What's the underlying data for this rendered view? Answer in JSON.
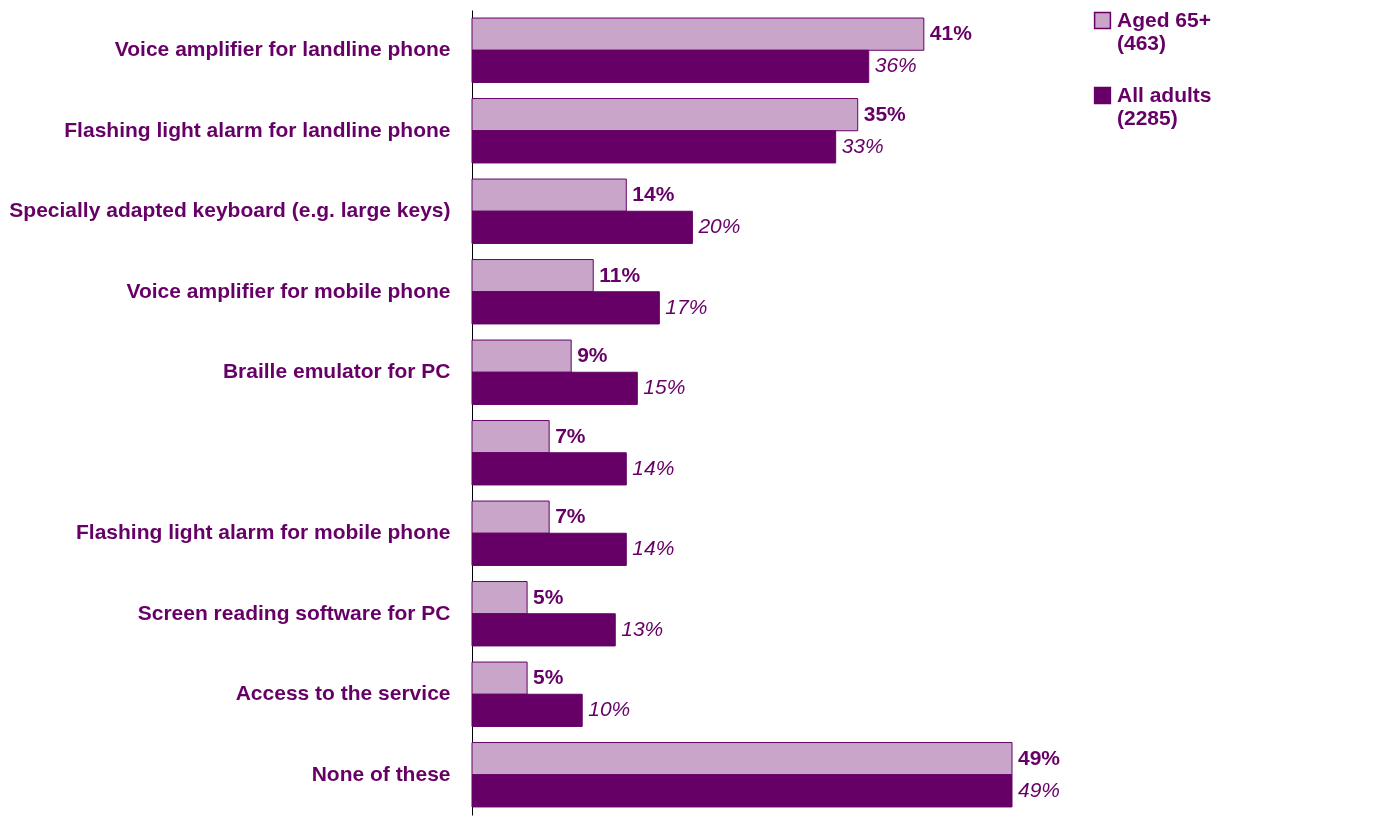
{
  "chart_data": {
    "type": "bar",
    "orientation": "horizontal",
    "categories": [
      "Voice amplifier for landline phone",
      "Flashing light alarm for landline phone",
      "Specially adapted keyboard (e.g. large keys)",
      "Voice amplifier for mobile phone",
      "Braille emulator for PC",
      null,
      "Flashing light alarm for mobile phone",
      "Screen reading software for PC",
      "Access to the service",
      "None of these"
    ],
    "series": [
      {
        "name": "Aged 65+\n(463)",
        "color": "#c9a6c9",
        "values": [
          41,
          35,
          14,
          11,
          9,
          7,
          7,
          5,
          5,
          49
        ],
        "value_labels": [
          "41%",
          "35%",
          "14%",
          "11%",
          "9%",
          "7%",
          "7%",
          "5%",
          "5%",
          "49%"
        ]
      },
      {
        "name": "All adults\n(2285)",
        "color": "#660066",
        "values": [
          36,
          33,
          20,
          17,
          15,
          14,
          14,
          13,
          10,
          49
        ],
        "value_labels": [
          "36%",
          "33%",
          "20%",
          "17%",
          "15%",
          "14%",
          "14%",
          "13%",
          "10%",
          "49%"
        ]
      }
    ],
    "legend": "right"
  }
}
